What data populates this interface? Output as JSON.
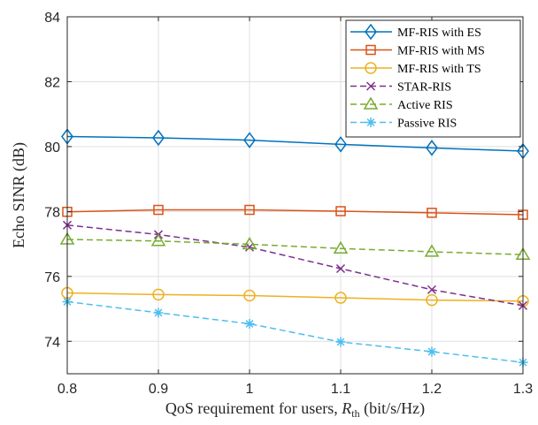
{
  "chart_data": {
    "type": "line",
    "xlabel_text": "QoS requirement for users, ",
    "xlabel_symbol": "R",
    "xlabel_subscript": "th",
    "xlabel_unit": " (bit/s/Hz)",
    "ylabel": "Echo SINR (dB)",
    "xlim": [
      0.8,
      1.3
    ],
    "ylim": [
      73,
      84
    ],
    "xticks": [
      0.8,
      0.9,
      1.0,
      1.1,
      1.2,
      1.3
    ],
    "xtick_labels": [
      "0.8",
      "0.9",
      "1",
      "1.1",
      "1.2",
      "1.3"
    ],
    "yticks": [
      74,
      76,
      78,
      80,
      82,
      84
    ],
    "ytick_labels": [
      "74",
      "76",
      "78",
      "80",
      "82",
      "84"
    ],
    "grid": true,
    "legend_position": "top-right",
    "x": [
      0.8,
      0.9,
      1.0,
      1.1,
      1.2,
      1.3
    ],
    "series": [
      {
        "name": "MF-RIS with ES",
        "values": [
          80.31,
          80.27,
          80.2,
          80.07,
          79.96,
          79.86
        ],
        "color": "#0072BD",
        "dash": "solid",
        "marker": "diamond"
      },
      {
        "name": "MF-RIS with MS",
        "values": [
          77.99,
          78.05,
          78.05,
          78.01,
          77.96,
          77.9
        ],
        "color": "#D95319",
        "dash": "solid",
        "marker": "square"
      },
      {
        "name": "MF-RIS with TS",
        "values": [
          75.49,
          75.44,
          75.41,
          75.34,
          75.27,
          75.24
        ],
        "color": "#EDB120",
        "dash": "solid",
        "marker": "circle"
      },
      {
        "name": "STAR-RIS",
        "values": [
          77.58,
          77.29,
          76.9,
          76.24,
          75.59,
          75.1
        ],
        "color": "#7E2F8E",
        "dash": "dashed",
        "marker": "x"
      },
      {
        "name": "Active RIS",
        "values": [
          77.14,
          77.09,
          76.99,
          76.86,
          76.76,
          76.67
        ],
        "color": "#77AC30",
        "dash": "dashed",
        "marker": "triangle"
      },
      {
        "name": "Passive RIS",
        "values": [
          75.22,
          74.88,
          74.54,
          73.98,
          73.68,
          73.35
        ],
        "color": "#4DBEEE",
        "dash": "dashed",
        "marker": "asterisk"
      }
    ]
  }
}
